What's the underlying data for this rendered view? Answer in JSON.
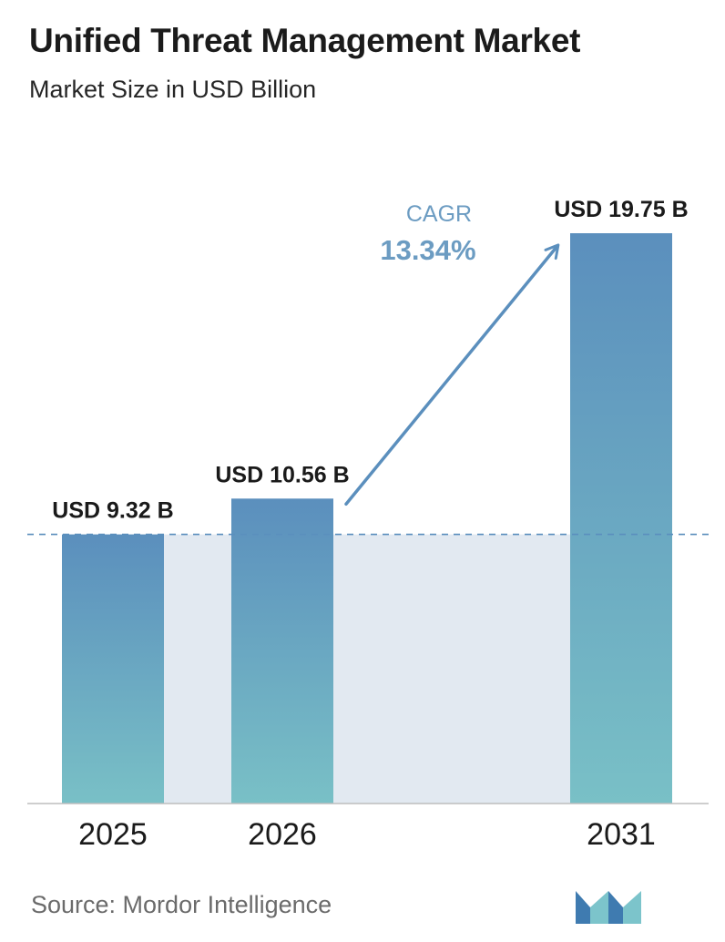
{
  "header": {
    "title": "Unified Threat Management Market",
    "subtitle": "Market Size in USD Billion"
  },
  "footer": {
    "source": "Source:  Mordor Intelligence",
    "logo_icon": "mordor-intelligence-logo-icon"
  },
  "colors": {
    "bar_top": "#5b8fbd",
    "bar_bottom": "#79c0c6",
    "band": "#e2e9f1",
    "dashed_line": "#5b8fbd",
    "cagr_text": "#6c9cc2",
    "arrow": "#5b8fbd",
    "axis": "#bdbdbd"
  },
  "chart_data": {
    "type": "bar",
    "title": "Unified Threat Management Market",
    "subtitle": "Market Size in USD Billion",
    "categories": [
      "2025",
      "2026",
      "2031"
    ],
    "values": [
      9.32,
      10.56,
      19.75
    ],
    "value_labels": [
      "USD 9.32 B",
      "USD 10.56 B",
      "USD 19.75 B"
    ],
    "reference_line": 9.32,
    "ylim": [
      0,
      19.75
    ],
    "grid": false,
    "legend": "none",
    "annotation": {
      "label": "CAGR",
      "value": "13.34%",
      "arrow_from": "2026",
      "arrow_to": "2031"
    }
  }
}
